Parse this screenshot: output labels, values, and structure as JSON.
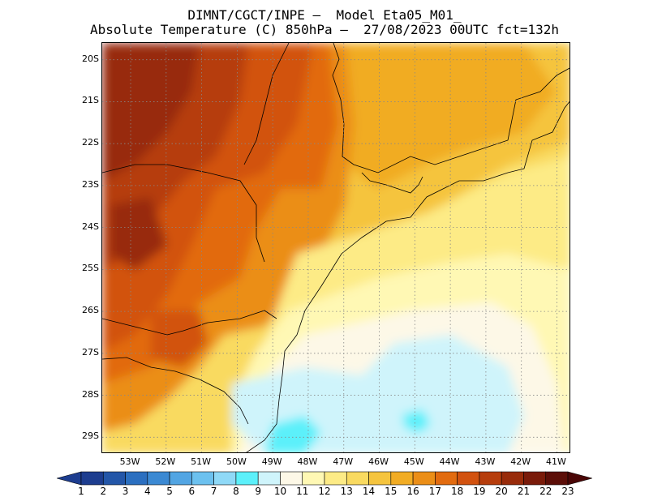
{
  "header": {
    "line1": "DIMNT/CGCT/INPE –  Model Eta05_M01_",
    "line2": "Absolute Temperature (C) 850hPa –  27/08/2023 00UTC fct=132h"
  },
  "map": {
    "lat_range": [
      "29.4S",
      "19.6S"
    ],
    "lon_range": [
      "53.8W",
      "40.6W"
    ],
    "lat_ticks": [
      "20S",
      "21S",
      "22S",
      "23S",
      "24S",
      "25S",
      "26S",
      "27S",
      "28S",
      "29S"
    ],
    "lon_ticks": [
      "53W",
      "52W",
      "51W",
      "50W",
      "49W",
      "48W",
      "47W",
      "46W",
      "45W",
      "44W",
      "43W",
      "42W",
      "41W"
    ],
    "grid": "dotted",
    "field": "temperature_850hPa",
    "regions": {
      "warmest": "northwest interior (~21-22 C)",
      "coolest": "ocean southeast of Santa Catarina (~9-10 C)"
    }
  },
  "legend": {
    "labels": [
      "1",
      "2",
      "3",
      "4",
      "5",
      "6",
      "7",
      "8",
      "9",
      "10",
      "11",
      "12",
      "13",
      "14",
      "15",
      "16",
      "17",
      "18",
      "19",
      "20",
      "21",
      "22",
      "23"
    ],
    "colors": [
      "#1d3d8f",
      "#2356a8",
      "#2b6fc0",
      "#3b89d3",
      "#52a5e3",
      "#6cc1ef",
      "#8fd9f7",
      "#5cf0fa",
      "#cff4fb",
      "#fdf8e7",
      "#fff8b4",
      "#fdeb86",
      "#f9da60",
      "#f5c43e",
      "#f1ac24",
      "#eb8e17",
      "#e26b0f",
      "#d2520f",
      "#b63d0c",
      "#982b0a",
      "#7a1b0a",
      "#5c0e08"
    ],
    "extend": "both"
  }
}
